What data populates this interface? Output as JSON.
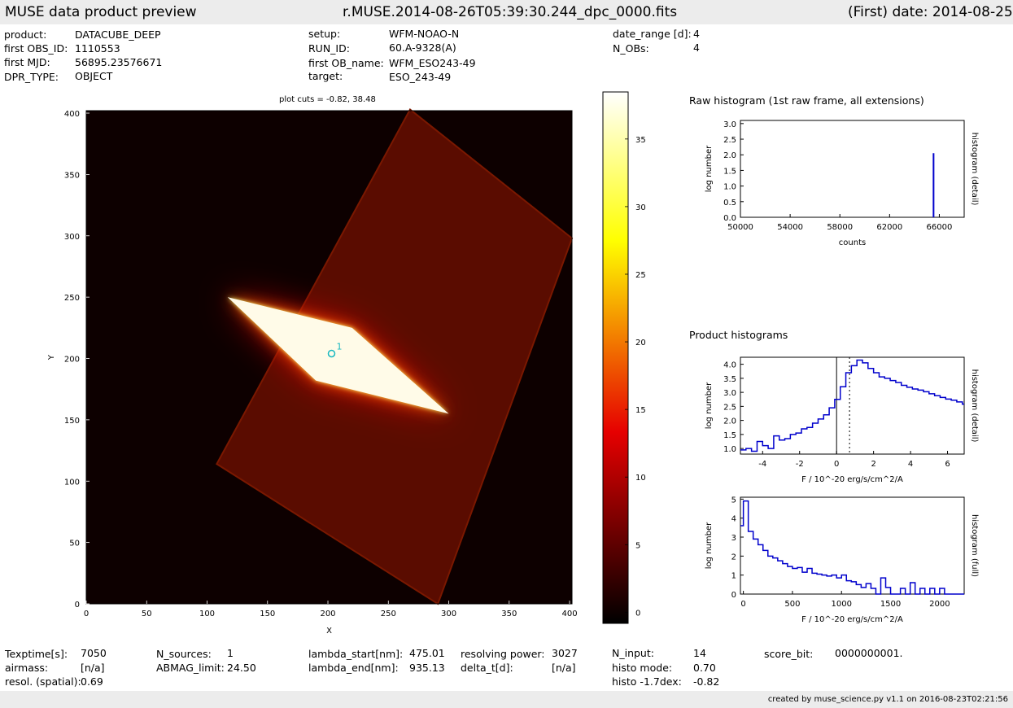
{
  "header": {
    "left": "MUSE data product preview",
    "center": "r.MUSE.2014-08-26T05:39:30.244_dpc_0000.fits",
    "right": "(First) date: 2014-08-25"
  },
  "info_top": [
    {
      "label": "product:",
      "value": "DATACUBE_DEEP"
    },
    {
      "label": "first OBS_ID:",
      "value": "1110553"
    },
    {
      "label": "first MJD:",
      "value": "56895.23576671"
    },
    {
      "label": "DPR_TYPE:",
      "value": "OBJECT"
    },
    {
      "label": "setup:",
      "value": "WFM-NOAO-N"
    },
    {
      "label": "RUN_ID:",
      "value": "60.A-9328(A)"
    },
    {
      "label": "first OB_name:",
      "value": "WFM_ESO243-49"
    },
    {
      "label": "target:",
      "value": "ESO_243-49"
    },
    {
      "label": "date_range [d]:",
      "value": "4"
    },
    {
      "label": "N_OBs:",
      "value": "4"
    }
  ],
  "info_bottom": [
    {
      "label": "Texptime[s]:",
      "value": "7050"
    },
    {
      "label": "airmass:",
      "value": "[n/a]"
    },
    {
      "label": "resol. (spatial):",
      "value": "0.69"
    },
    {
      "label": "N_sources:",
      "value": "1"
    },
    {
      "label": "ABMAG_limit:",
      "value": "24.50"
    },
    {
      "label": "lambda_start[nm]:",
      "value": "475.01"
    },
    {
      "label": "lambda_end[nm]:",
      "value": "935.13"
    },
    {
      "label": "resolving power:",
      "value": "3027"
    },
    {
      "label": "delta_t[d]:",
      "value": "[n/a]"
    },
    {
      "label": "N_input:",
      "value": "14"
    },
    {
      "label": "histo mode:",
      "value": "0.70"
    },
    {
      "label": "histo -1.7dex:",
      "value": "-0.82"
    },
    {
      "label": "score_bit:",
      "value": "0000000001."
    }
  ],
  "footer": "created by muse_science.py v1.1 on 2016-08-23T02:21:56",
  "chart_data": [
    {
      "type": "heatmap",
      "title": "plot cuts = -0.82, 38.48",
      "xlabel": "X",
      "ylabel": "Y",
      "xlim": [
        0,
        402
      ],
      "ylim": [
        0,
        402
      ],
      "xticks": [
        0,
        50,
        100,
        150,
        200,
        250,
        300,
        350,
        400
      ],
      "yticks": [
        0,
        50,
        100,
        150,
        200,
        250,
        300,
        350,
        400
      ],
      "colormap": "hot",
      "color_range": [
        -0.82,
        38.48
      ],
      "field_corners": [
        [
          108,
          114
        ],
        [
          268,
          403
        ],
        [
          402,
          298
        ],
        [
          291,
          0
        ]
      ],
      "galaxy_corners": [
        [
          117,
          250
        ],
        [
          220,
          225
        ],
        [
          300,
          155
        ],
        [
          190,
          182
        ]
      ],
      "source_marker": {
        "label": "1",
        "x": 203,
        "y": 204,
        "color": "#18b8c0"
      }
    },
    {
      "type": "heatmap",
      "title": "",
      "xlabel": "",
      "ylabel": "",
      "colorbar_ticks": [
        0,
        5,
        10,
        15,
        20,
        25,
        30,
        35
      ],
      "range": [
        -0.82,
        38.48
      ]
    },
    {
      "type": "bar",
      "title": "Raw histogram (1st raw frame, all extensions)",
      "xlabel": "counts",
      "ylabel": "log number",
      "ylabel_right": "histogram (detail)",
      "xlim": [
        50000,
        68000
      ],
      "ylim": [
        0,
        3.1
      ],
      "xticks": [
        50000,
        54000,
        58000,
        62000,
        66000
      ],
      "yticks": [
        0.0,
        0.5,
        1.0,
        1.5,
        2.0,
        2.5,
        3.0
      ],
      "x": [
        65536
      ],
      "values": [
        2.05
      ],
      "color": "#0000cc"
    },
    {
      "type": "line",
      "title": "Product histograms",
      "xlabel": "F / 10^-20 erg/s/cm^2/A",
      "ylabel": "log number",
      "ylabel_right": "histogram (detail)",
      "xlim": [
        -5.2,
        6.9
      ],
      "ylim": [
        0.8,
        4.25
      ],
      "xticks": [
        -4,
        -2,
        0,
        2,
        4,
        6
      ],
      "yticks": [
        1.0,
        1.5,
        2.0,
        2.5,
        3.0,
        3.5,
        4.0
      ],
      "step": true,
      "color": "#0000cc",
      "vlines": [
        {
          "x": 0,
          "style": "solid"
        },
        {
          "x": 0.7,
          "style": "dotted"
        }
      ],
      "series": [
        {
          "x": [
            -5.2,
            -4.9,
            -4.6,
            -4.3,
            -4.0,
            -3.7,
            -3.4,
            -3.1,
            -2.8,
            -2.5,
            -2.2,
            -1.9,
            -1.6,
            -1.3,
            -1.0,
            -0.7,
            -0.4,
            -0.1,
            0.2,
            0.5,
            0.8,
            1.1,
            1.4,
            1.7,
            2.0,
            2.3,
            2.6,
            2.9,
            3.2,
            3.5,
            3.8,
            4.1,
            4.4,
            4.7,
            5.0,
            5.3,
            5.6,
            5.9,
            6.2,
            6.5,
            6.8
          ],
          "values": [
            0.95,
            1.0,
            0.9,
            1.25,
            1.1,
            1.0,
            1.45,
            1.3,
            1.35,
            1.5,
            1.55,
            1.7,
            1.75,
            1.9,
            2.05,
            2.2,
            2.45,
            2.75,
            3.2,
            3.7,
            3.95,
            4.15,
            4.05,
            3.85,
            3.7,
            3.55,
            3.5,
            3.42,
            3.35,
            3.25,
            3.18,
            3.12,
            3.08,
            3.02,
            2.95,
            2.88,
            2.82,
            2.76,
            2.72,
            2.66,
            2.58
          ]
        }
      ]
    },
    {
      "type": "line",
      "title": "",
      "xlabel": "F / 10^-20 erg/s/cm^2/A",
      "ylabel": "log number",
      "ylabel_right": "histogram (full)",
      "xlim": [
        -30,
        2250
      ],
      "ylim": [
        0,
        5.1
      ],
      "xticks": [
        0,
        500,
        1000,
        1500,
        2000
      ],
      "yticks": [
        0,
        1,
        2,
        3,
        4,
        5
      ],
      "step": true,
      "color": "#0000cc",
      "series": [
        {
          "x": [
            -30,
            0,
            50,
            100,
            150,
            200,
            250,
            300,
            350,
            400,
            450,
            500,
            550,
            600,
            650,
            700,
            750,
            800,
            850,
            900,
            950,
            1000,
            1050,
            1100,
            1150,
            1200,
            1250,
            1300,
            1350,
            1400,
            1450,
            1500,
            1550,
            1600,
            1650,
            1700,
            1750,
            1800,
            1850,
            1900,
            1950,
            2000,
            2050,
            2100
          ],
          "values": [
            3.6,
            4.9,
            3.3,
            2.9,
            2.6,
            2.3,
            2.0,
            1.9,
            1.75,
            1.6,
            1.45,
            1.35,
            1.4,
            1.15,
            1.35,
            1.1,
            1.05,
            1.0,
            0.95,
            1.0,
            0.85,
            1.0,
            0.7,
            0.65,
            0.5,
            0.35,
            0.55,
            0.3,
            0.0,
            0.85,
            0.35,
            0.0,
            0.0,
            0.3,
            0.0,
            0.6,
            0.0,
            0.3,
            0.0,
            0.3,
            0.0,
            0.3,
            0.0,
            0.0
          ]
        }
      ]
    }
  ]
}
